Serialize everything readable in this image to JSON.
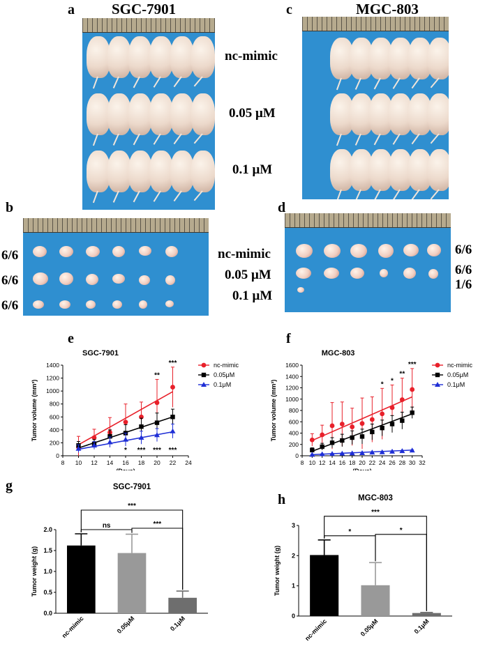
{
  "panels": {
    "a": "a",
    "b": "b",
    "c": "c",
    "d": "d",
    "e": "e",
    "f": "f",
    "g": "g",
    "h": "h"
  },
  "photo_titles": {
    "left": "SGC-7901",
    "right": "MGC-803"
  },
  "mice_groups": [
    "nc-mimic",
    "0.05 μM",
    "0.1 μM"
  ],
  "tumor_groups": [
    "nc-mimic",
    "0.05 μM",
    "0.1 μM"
  ],
  "left_ratios": [
    "6/6",
    "6/6",
    "6/6"
  ],
  "right_ratios": [
    "6/6",
    "6/6",
    "1/6"
  ],
  "colors": {
    "nc": "#e8202a",
    "mid": "#000000",
    "low": "#1f2fd6",
    "bar_nc": "#000000",
    "bar_mid": "#999999",
    "bar_low": "#6e6e6e",
    "photo_bg": "#2f8fd0"
  },
  "chart_data": [
    {
      "id": "e",
      "type": "line",
      "title": "SGC-7901",
      "xlabel": "(Days)",
      "ylabel": "Tumor volume (mm³)",
      "xlim": [
        8,
        24
      ],
      "ylim": [
        0,
        1400
      ],
      "xticks": [
        8,
        10,
        12,
        14,
        16,
        18,
        20,
        22,
        24
      ],
      "yticks": [
        0,
        200,
        400,
        600,
        800,
        1000,
        1200,
        1400
      ],
      "x": [
        10,
        12,
        14,
        16,
        18,
        20,
        22
      ],
      "series": [
        {
          "name": "nc-mimic",
          "color": "#e8202a",
          "marker": "circle",
          "values": [
            130,
            280,
            360,
            520,
            600,
            820,
            1060
          ],
          "err": [
            170,
            130,
            230,
            280,
            230,
            360,
            310
          ],
          "fit": [
            170,
            300,
            430,
            560,
            680,
            820,
            990
          ]
        },
        {
          "name": "0.05μM",
          "color": "#000000",
          "marker": "square",
          "values": [
            160,
            180,
            300,
            350,
            450,
            510,
            600
          ],
          "err": [
            60,
            70,
            100,
            130,
            130,
            150,
            120
          ],
          "fit": [
            120,
            200,
            280,
            360,
            440,
            520,
            600
          ]
        },
        {
          "name": "0.1μM",
          "color": "#1f2fd6",
          "marker": "triangle",
          "values": [
            110,
            160,
            210,
            250,
            280,
            320,
            380
          ],
          "err": [
            60,
            60,
            80,
            100,
            100,
            100,
            110
          ],
          "fit": [
            100,
            145,
            190,
            235,
            280,
            325,
            370
          ]
        }
      ],
      "annotations_top": [
        {
          "x": 20,
          "text": "**"
        },
        {
          "x": 22,
          "text": "***"
        }
      ],
      "annotations_bottom": [
        {
          "x": 16,
          "text": "*"
        },
        {
          "x": 18,
          "text": "***"
        },
        {
          "x": 20,
          "text": "***"
        },
        {
          "x": 22,
          "text": "***"
        }
      ]
    },
    {
      "id": "f",
      "type": "line",
      "title": "MGC-803",
      "xlabel": "(Days)",
      "ylabel": "Tumor volume (mm³)",
      "xlim": [
        8,
        32
      ],
      "ylim": [
        0,
        1600
      ],
      "xticks": [
        8,
        10,
        12,
        14,
        16,
        18,
        20,
        22,
        24,
        26,
        28,
        30,
        32
      ],
      "yticks": [
        0,
        200,
        400,
        600,
        800,
        1000,
        1200,
        1400,
        1600
      ],
      "x": [
        10,
        12,
        14,
        16,
        18,
        20,
        22,
        24,
        26,
        28,
        30
      ],
      "series": [
        {
          "name": "nc-mimic",
          "color": "#e8202a",
          "marker": "circle",
          "values": [
            280,
            370,
            530,
            560,
            510,
            570,
            640,
            740,
            850,
            990,
            1170
          ],
          "err": [
            110,
            170,
            410,
            390,
            330,
            450,
            400,
            450,
            400,
            380,
            370
          ],
          "fit": [
            270,
            350,
            430,
            510,
            590,
            660,
            740,
            820,
            890,
            960,
            1040
          ]
        },
        {
          "name": "0.05μM",
          "color": "#000000",
          "marker": "square",
          "values": [
            100,
            160,
            230,
            270,
            320,
            340,
            420,
            490,
            560,
            620,
            760
          ],
          "err": [
            40,
            60,
            90,
            110,
            120,
            130,
            140,
            140,
            150,
            150,
            100
          ],
          "fit": [
            80,
            150,
            220,
            290,
            350,
            420,
            490,
            550,
            610,
            680,
            740
          ]
        },
        {
          "name": "0.1μM",
          "color": "#1f2fd6",
          "marker": "triangle",
          "values": [
            20,
            30,
            35,
            40,
            45,
            50,
            60,
            65,
            75,
            85,
            95
          ],
          "err": [
            5,
            5,
            5,
            5,
            5,
            5,
            5,
            8,
            8,
            8,
            8
          ],
          "fit": [
            20,
            28,
            36,
            44,
            52,
            60,
            68,
            76,
            84,
            92,
            100
          ]
        }
      ],
      "annotations_top": [
        {
          "x": 24,
          "text": "*"
        },
        {
          "x": 26,
          "text": "*"
        },
        {
          "x": 28,
          "text": "**"
        },
        {
          "x": 30,
          "text": "***"
        }
      ],
      "annotations_bottom": []
    },
    {
      "id": "g",
      "type": "bar",
      "title": "SGC-7901",
      "ylabel": "Tumor weight (g)",
      "ylim": [
        0,
        2.0
      ],
      "yticks": [
        "0.0",
        "0.5",
        "1.0",
        "1.5",
        "2.0"
      ],
      "categories": [
        "nc-mimic",
        "0.05μM",
        "0.1μM"
      ],
      "values": [
        1.62,
        1.44,
        0.37
      ],
      "err": [
        0.28,
        0.45,
        0.16
      ],
      "colors": [
        "#000000",
        "#999999",
        "#6e6e6e"
      ],
      "brackets": [
        {
          "from": 0,
          "to": 1,
          "level": 1,
          "text": "ns"
        },
        {
          "from": 1,
          "to": 2,
          "level": 2,
          "text": "***"
        },
        {
          "from": 0,
          "to": 2,
          "level": 3,
          "text": "***"
        }
      ]
    },
    {
      "id": "h",
      "type": "bar",
      "title": "MGC-803",
      "ylabel": "Tumor weight (g)",
      "ylim": [
        0,
        3
      ],
      "yticks": [
        "0",
        "1",
        "2",
        "3"
      ],
      "categories": [
        "nc-mimic",
        "0.05μM",
        "0.1μM"
      ],
      "values": [
        2.02,
        1.02,
        0.1
      ],
      "err": [
        0.5,
        0.75,
        0.02
      ],
      "colors": [
        "#000000",
        "#999999",
        "#6e6e6e"
      ],
      "brackets": [
        {
          "from": 0,
          "to": 1,
          "level": 1,
          "text": "*"
        },
        {
          "from": 1,
          "to": 2,
          "level": 2,
          "text": "*"
        },
        {
          "from": 0,
          "to": 2,
          "level": 3,
          "text": "***"
        }
      ]
    }
  ]
}
